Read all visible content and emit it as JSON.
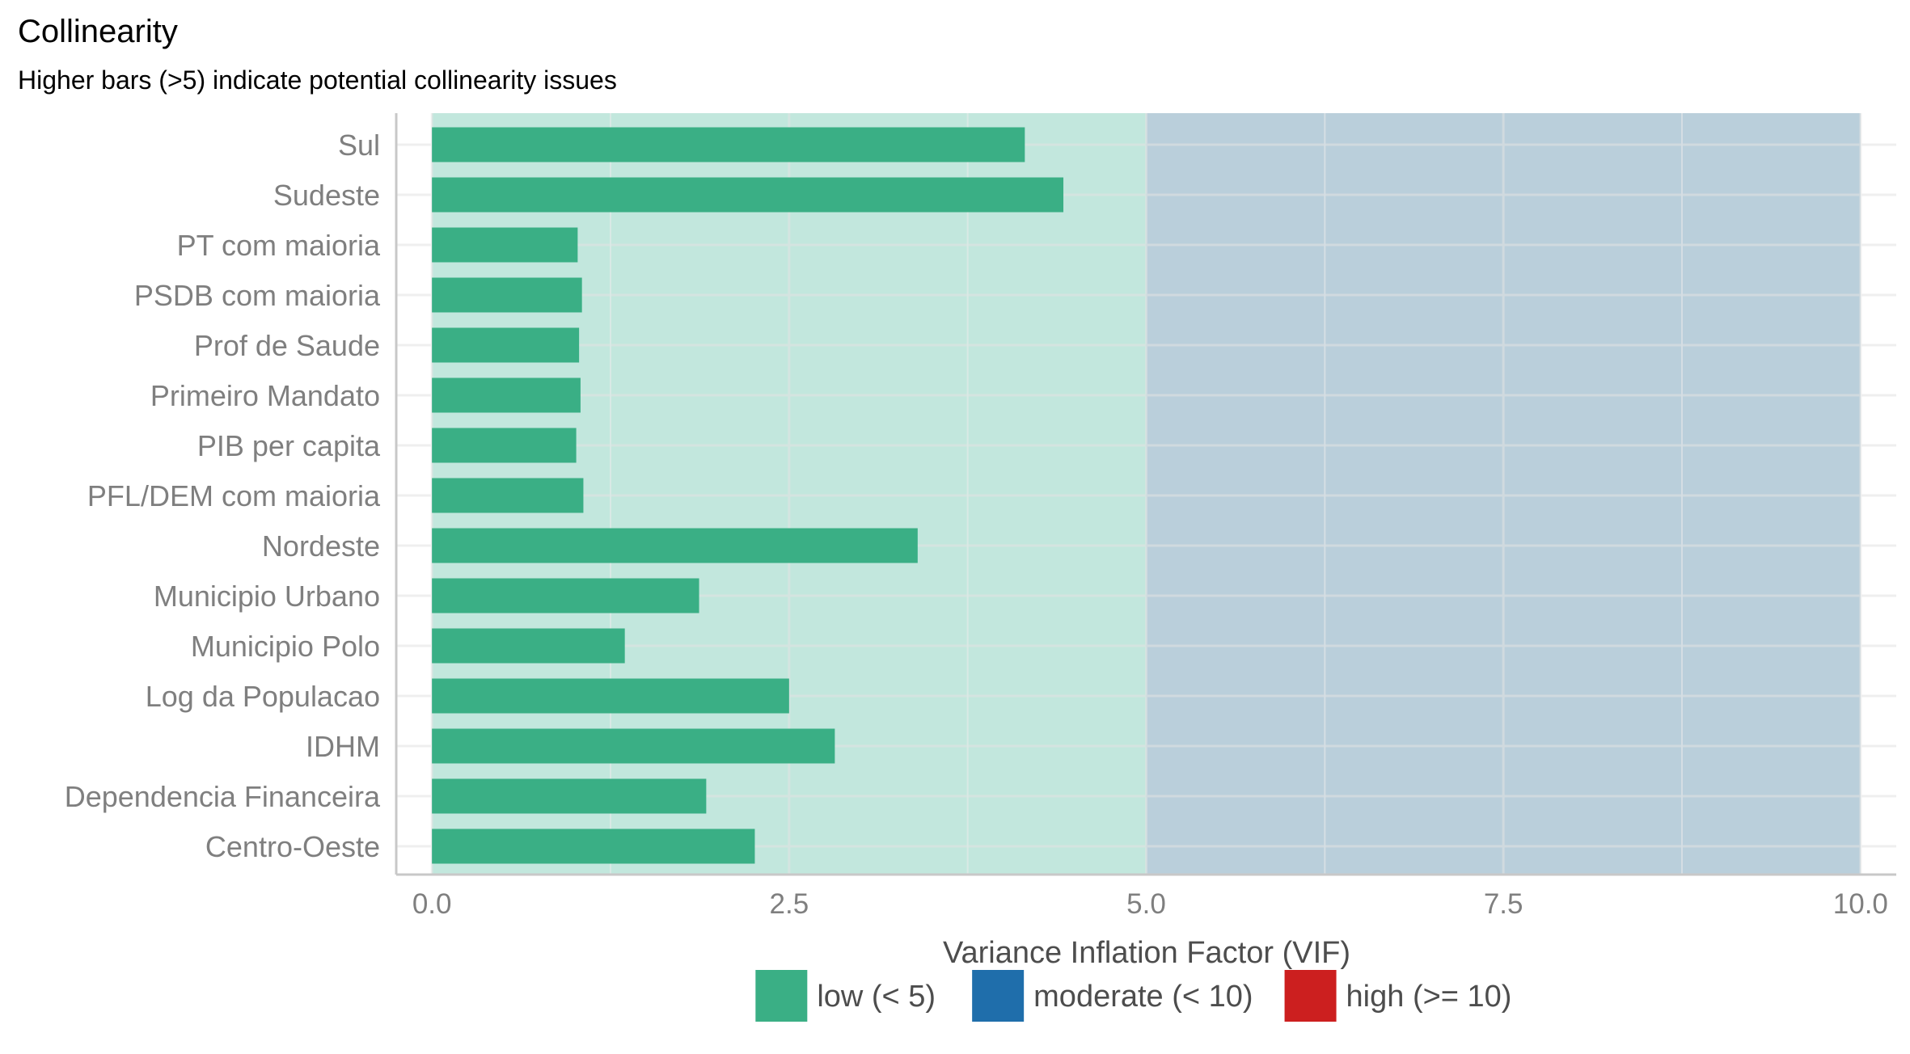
{
  "chart_data": {
    "type": "bar",
    "orientation": "horizontal",
    "title": "Collinearity",
    "subtitle": "Higher bars (>5) indicate potential collinearity issues",
    "xlabel": "Variance Inflation Factor (VIF)",
    "ylabel": "",
    "xlim": [
      -0.25,
      10.25
    ],
    "x_ticks": [
      0,
      2.5,
      5,
      7.5,
      10
    ],
    "x_tick_labels": [
      "0.0",
      "2.5",
      "5.0",
      "7.5",
      "10.0"
    ],
    "grid": true,
    "categories": [
      "Sul",
      "Sudeste",
      "PT com maioria",
      "PSDB com maioria",
      "Prof de Saude",
      "Primeiro Mandato",
      "PIB per capita",
      "PFL/DEM com maioria",
      "Nordeste",
      "Municipio Urbano",
      "Municipio Polo",
      "Log da Populacao",
      "IDHM",
      "Dependencia Financeira",
      "Centro-Oeste"
    ],
    "values": [
      4.15,
      4.42,
      1.02,
      1.05,
      1.03,
      1.04,
      1.01,
      1.06,
      3.4,
      1.87,
      1.35,
      2.5,
      2.82,
      1.92,
      2.26
    ],
    "bar_color": "#3aaf85",
    "regions": [
      {
        "from": 0,
        "to": 5,
        "color": "#bde5da"
      },
      {
        "from": 5,
        "to": 10,
        "color": "#b4cbd8"
      }
    ],
    "legend_position": "bottom",
    "legend": [
      {
        "label": "low (< 5)",
        "color": "#3aaf85"
      },
      {
        "label": "moderate (< 10)",
        "color": "#1f6eab"
      },
      {
        "label": "high (>= 10)",
        "color": "#cc1f1f"
      }
    ]
  }
}
